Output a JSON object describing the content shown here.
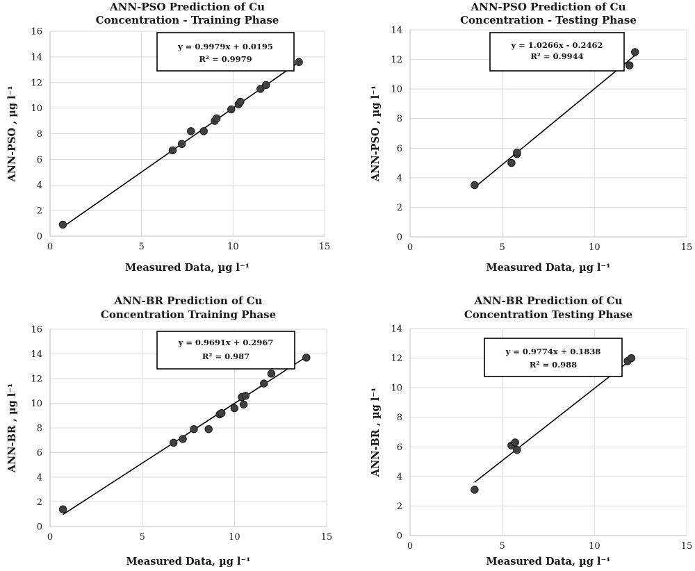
{
  "chart_data": [
    {
      "type": "scatter",
      "title": "ANN-PSO Prediction of Cu",
      "subtitle": "Concentration - Training Phase",
      "xlabel": "Measured Data, µg l⁻¹",
      "ylabel": "ANN-PSO , µg l⁻¹",
      "xlim": [
        0,
        15
      ],
      "ylim": [
        0,
        16
      ],
      "xticks": [
        "0",
        "5",
        "10",
        "15"
      ],
      "yticks": [
        "0",
        "2",
        "4",
        "6",
        "8",
        "10",
        "12",
        "14",
        "16"
      ],
      "grid": true,
      "trendline": {
        "slope": 0.9979,
        "intercept": 0.0195,
        "x_range": [
          0.7,
          13.6
        ]
      },
      "equation": "y = 0.9979x + 0.0195",
      "r_squared": "R² = 0.9979",
      "points": [
        {
          "x": 0.7,
          "y": 0.9
        },
        {
          "x": 6.7,
          "y": 6.7
        },
        {
          "x": 7.2,
          "y": 7.2
        },
        {
          "x": 7.7,
          "y": 8.2
        },
        {
          "x": 8.4,
          "y": 8.2
        },
        {
          "x": 9.0,
          "y": 9.0
        },
        {
          "x": 9.1,
          "y": 9.2
        },
        {
          "x": 9.9,
          "y": 9.9
        },
        {
          "x": 10.3,
          "y": 10.3
        },
        {
          "x": 10.4,
          "y": 10.5
        },
        {
          "x": 11.5,
          "y": 11.5
        },
        {
          "x": 11.8,
          "y": 11.8
        },
        {
          "x": 13.6,
          "y": 13.6
        }
      ]
    },
    {
      "type": "scatter",
      "title": "ANN-PSO Prediction of Cu",
      "subtitle": "Concentration - Testing Phase",
      "xlabel": "Measured Data, µg l⁻¹",
      "ylabel": "ANN-PSO , µg l⁻¹",
      "xlim": [
        0,
        15
      ],
      "ylim": [
        0,
        14
      ],
      "xticks": [
        "0",
        "5",
        "10",
        "15"
      ],
      "yticks": [
        "0",
        "2",
        "4",
        "6",
        "8",
        "10",
        "12",
        "14"
      ],
      "grid": true,
      "trendline": {
        "slope": 1.0266,
        "intercept": -0.2462,
        "x_range": [
          3.5,
          12.2
        ]
      },
      "equation": "y = 1.0266x - 0.2462",
      "r_squared": "R² = 0.9944",
      "points": [
        {
          "x": 3.5,
          "y": 3.5
        },
        {
          "x": 5.5,
          "y": 5.0
        },
        {
          "x": 5.8,
          "y": 5.6
        },
        {
          "x": 5.8,
          "y": 5.7
        },
        {
          "x": 11.9,
          "y": 11.6
        },
        {
          "x": 12.2,
          "y": 12.5
        }
      ]
    },
    {
      "type": "scatter",
      "title": "ANN-BR Prediction of Cu",
      "subtitle": "Concentration Training Phase",
      "xlabel": "Measured Data, µg l⁻¹",
      "ylabel": "ANN-BR , µg l⁻¹",
      "xlim": [
        0,
        15
      ],
      "ylim": [
        0,
        16
      ],
      "xticks": [
        "0",
        "5",
        "10",
        "15"
      ],
      "yticks": [
        "0",
        "2",
        "4",
        "6",
        "8",
        "10",
        "12",
        "14",
        "16"
      ],
      "grid": true,
      "trendline": {
        "slope": 0.9691,
        "intercept": 0.2967,
        "x_range": [
          0.7,
          13.9
        ]
      },
      "equation": "y = 0.9691x + 0.2967",
      "r_squared": "R² = 0.987",
      "points": [
        {
          "x": 0.7,
          "y": 1.4
        },
        {
          "x": 6.7,
          "y": 6.8
        },
        {
          "x": 7.2,
          "y": 7.1
        },
        {
          "x": 7.8,
          "y": 7.9
        },
        {
          "x": 8.6,
          "y": 7.9
        },
        {
          "x": 9.2,
          "y": 9.1
        },
        {
          "x": 9.3,
          "y": 9.2
        },
        {
          "x": 10.0,
          "y": 9.6
        },
        {
          "x": 10.4,
          "y": 10.5
        },
        {
          "x": 10.5,
          "y": 9.9
        },
        {
          "x": 10.6,
          "y": 10.6
        },
        {
          "x": 11.6,
          "y": 11.6
        },
        {
          "x": 12.0,
          "y": 12.4
        },
        {
          "x": 13.9,
          "y": 13.7
        }
      ]
    },
    {
      "type": "scatter",
      "title": "ANN-BR Prediction of Cu",
      "subtitle": "Concentration Testing Phase",
      "xlabel": "Measured Data, µg l⁻¹",
      "ylabel": "ANN-BR , µg l⁻¹",
      "xlim": [
        0,
        15
      ],
      "ylim": [
        0,
        14
      ],
      "xticks": [
        "0",
        "5",
        "10",
        "15"
      ],
      "yticks": [
        "0",
        "2",
        "4",
        "6",
        "8",
        "10",
        "12",
        "14"
      ],
      "grid": true,
      "trendline": {
        "slope": 0.9774,
        "intercept": 0.1838,
        "x_range": [
          3.5,
          12.0
        ]
      },
      "equation": "y = 0.9774x + 0.1838",
      "r_squared": "R² = 0.988",
      "points": [
        {
          "x": 3.5,
          "y": 3.1
        },
        {
          "x": 5.5,
          "y": 6.1
        },
        {
          "x": 5.7,
          "y": 6.3
        },
        {
          "x": 5.8,
          "y": 5.8
        },
        {
          "x": 11.8,
          "y": 11.8
        },
        {
          "x": 12.0,
          "y": 12.0
        }
      ]
    }
  ]
}
